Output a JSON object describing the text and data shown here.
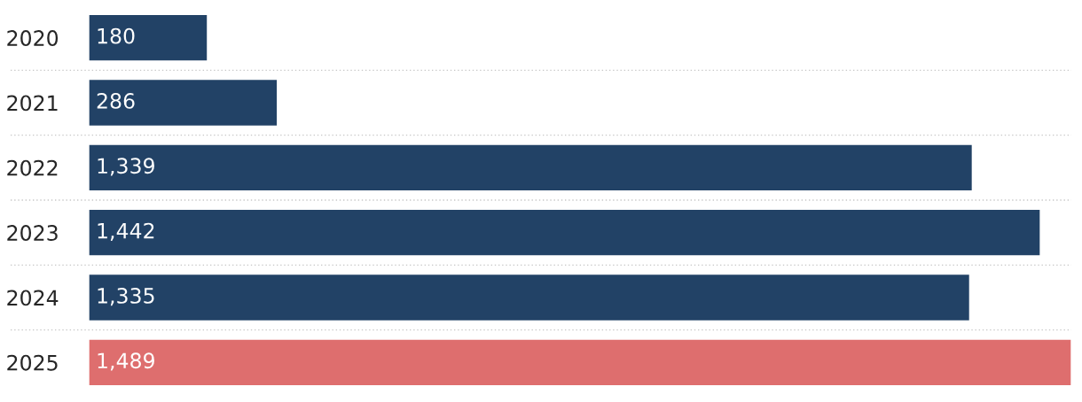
{
  "chart_data": {
    "type": "bar",
    "orientation": "horizontal",
    "categories": [
      "2020",
      "2021",
      "2022",
      "2023",
      "2024",
      "2025"
    ],
    "values": [
      180,
      286,
      1339,
      1442,
      1335,
      1489
    ],
    "colors": [
      "#224266",
      "#224266",
      "#224266",
      "#224266",
      "#224266",
      "#de6e6e"
    ],
    "value_labels": [
      "180",
      "286",
      "1,339",
      "1,442",
      "1,335",
      "1,489"
    ],
    "grid": "y",
    "legend": false
  }
}
